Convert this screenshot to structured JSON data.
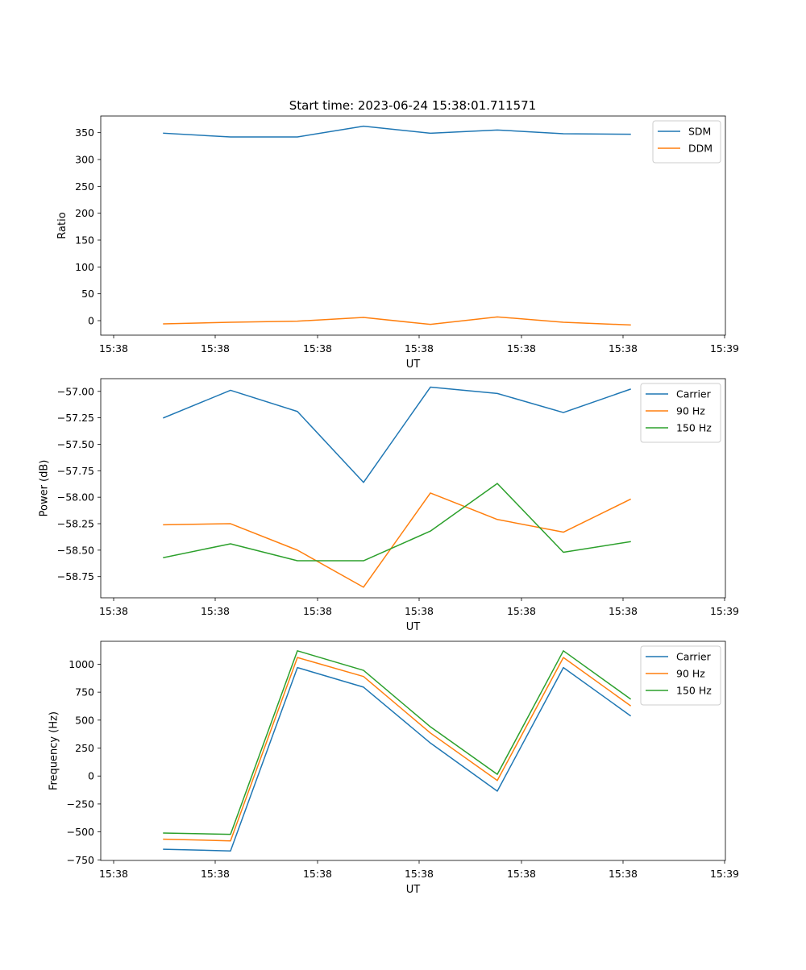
{
  "figure_title": "Start time: 2023-06-24 15:38:01.711571",
  "colors": {
    "blue": "#1f77b4",
    "orange": "#ff7f0e",
    "green": "#2ca02c"
  },
  "chart_data": [
    {
      "type": "line",
      "title": "Start time: 2023-06-24 15:38:01.711571",
      "xlabel": "UT",
      "ylabel": "Ratio",
      "x_tick_labels": [
        "15:38",
        "15:38",
        "15:38",
        "15:38",
        "15:38",
        "15:38",
        "15:39"
      ],
      "y_ticks": [
        0,
        50,
        100,
        150,
        200,
        250,
        300,
        350
      ],
      "ylim": [
        -27,
        381
      ],
      "legend_position": "top-right",
      "series": [
        {
          "name": "SDM",
          "color": "#1f77b4",
          "values": [
            349,
            342,
            342,
            362,
            349,
            355,
            348,
            347
          ]
        },
        {
          "name": "DDM",
          "color": "#ff7f0e",
          "values": [
            -6,
            -3,
            -1,
            6,
            -7,
            7,
            -3,
            -8
          ]
        }
      ]
    },
    {
      "type": "line",
      "xlabel": "UT",
      "ylabel": "Power (dB)",
      "x_tick_labels": [
        "15:38",
        "15:38",
        "15:38",
        "15:38",
        "15:38",
        "15:38",
        "15:39"
      ],
      "y_ticks": [
        -58.75,
        -58.5,
        -58.25,
        -58.0,
        -57.75,
        -57.5,
        -57.25,
        -57.0
      ],
      "y_tick_labels": [
        "−58.75",
        "−58.50",
        "−58.25",
        "−58.00",
        "−57.75",
        "−57.50",
        "−57.25",
        "−57.00"
      ],
      "ylim": [
        -58.95,
        -56.88
      ],
      "legend_position": "top-right",
      "series": [
        {
          "name": "Carrier",
          "color": "#1f77b4",
          "values": [
            -57.25,
            -56.99,
            -57.19,
            -57.86,
            -56.96,
            -57.02,
            -57.2,
            -56.98
          ]
        },
        {
          "name": "90 Hz",
          "color": "#ff7f0e",
          "values": [
            -58.26,
            -58.25,
            -58.5,
            -58.85,
            -57.96,
            -58.21,
            -58.33,
            -58.02
          ]
        },
        {
          "name": "150 Hz",
          "color": "#2ca02c",
          "values": [
            -58.57,
            -58.44,
            -58.6,
            -58.6,
            -58.32,
            -57.87,
            -58.52,
            -58.42
          ]
        }
      ]
    },
    {
      "type": "line",
      "xlabel": "UT",
      "ylabel": "Frequency (Hz)",
      "x_tick_labels": [
        "15:38",
        "15:38",
        "15:38",
        "15:38",
        "15:38",
        "15:38",
        "15:39"
      ],
      "y_ticks": [
        -750,
        -500,
        -250,
        0,
        250,
        500,
        750,
        1000
      ],
      "y_tick_labels": [
        "−750",
        "−500",
        "−250",
        "0",
        "250",
        "500",
        "750",
        "1000"
      ],
      "ylim": [
        -755,
        1205
      ],
      "legend_position": "top-right",
      "series": [
        {
          "name": "Carrier",
          "color": "#1f77b4",
          "values": [
            -655,
            -670,
            970,
            795,
            295,
            -135,
            970,
            540
          ]
        },
        {
          "name": "90 Hz",
          "color": "#ff7f0e",
          "values": [
            -565,
            -580,
            1060,
            890,
            385,
            -40,
            1060,
            630
          ]
        },
        {
          "name": "150 Hz",
          "color": "#2ca02c",
          "values": [
            -510,
            -522,
            1120,
            945,
            440,
            15,
            1120,
            690
          ]
        }
      ]
    }
  ]
}
